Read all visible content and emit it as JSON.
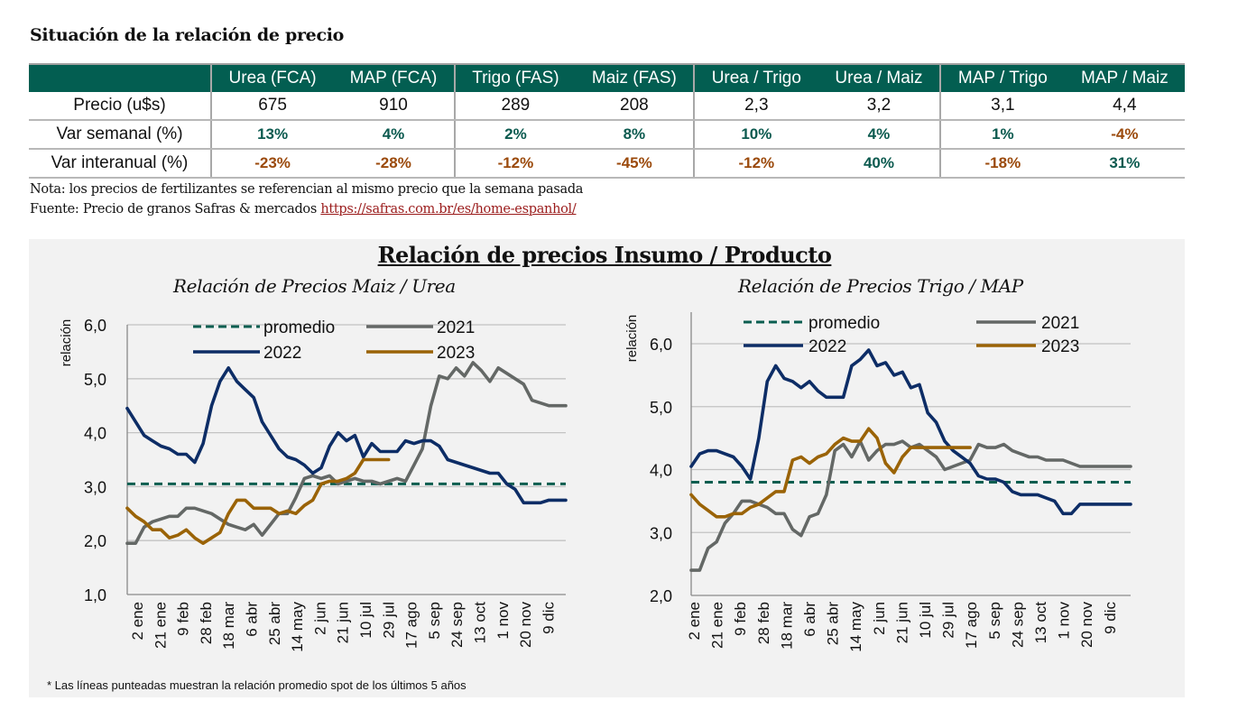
{
  "header": {
    "title": "Situación de la relación de precio"
  },
  "table": {
    "columns": [
      "Urea (FCA)",
      "MAP (FCA)",
      "Trigo (FAS)",
      "Maiz (FAS)",
      "Urea / Trigo",
      "Urea / Maiz",
      "MAP / Trigo",
      "MAP / Maiz"
    ],
    "rows": [
      {
        "label": "Precio (u$s)",
        "values": [
          "675",
          "910",
          "289",
          "208",
          "2,3",
          "3,2",
          "3,1",
          "4,4"
        ],
        "signs": [
          "",
          "",
          "",
          "",
          "",
          "",
          "",
          ""
        ]
      },
      {
        "label": "Var semanal (%)",
        "values": [
          "13%",
          "4%",
          "2%",
          "8%",
          "10%",
          "4%",
          "1%",
          "-4%"
        ],
        "signs": [
          "pos",
          "pos",
          "pos",
          "pos",
          "pos",
          "pos",
          "pos",
          "neg"
        ]
      },
      {
        "label": "Var interanual (%)",
        "values": [
          "-23%",
          "-28%",
          "-12%",
          "-45%",
          "-12%",
          "40%",
          "-18%",
          "31%"
        ],
        "signs": [
          "neg",
          "neg",
          "neg",
          "neg",
          "neg",
          "pos",
          "neg",
          "pos"
        ]
      }
    ]
  },
  "notes": {
    "nota": "Nota: los precios de fertilizantes se referencian al mismo precio que la semana pasada",
    "fuente_prefix": "Fuente: Precio de granos Safras & mercados ",
    "fuente_link": "https://safras.com.br/es/home-espanhol/"
  },
  "panel": {
    "title": "Relación de precios Insumo / Producto",
    "footnote": "* Las líneas punteadas muestran la relación promedio spot de los últimos 5 años"
  },
  "colors": {
    "header_green": "#035e51",
    "positive": "#0c5a4f",
    "negative": "#9b4a0c",
    "link": "#9b1c1c",
    "promedio": "#0a5e50",
    "y2021": "#646866",
    "y2022": "#0d2d66",
    "y2023": "#9a6306"
  },
  "chart_data": [
    {
      "type": "line",
      "title": "Relación de Precios Maiz / Urea",
      "ylabel": "relación",
      "xlabel": "",
      "ylim": [
        1.0,
        6.0
      ],
      "yticks": [
        "1,0",
        "2,0",
        "3,0",
        "4,0",
        "5,0",
        "6,0"
      ],
      "ytick_values": [
        1,
        2,
        3,
        4,
        5,
        6
      ],
      "x_tick_labels": [
        "2 ene",
        "21 ene",
        "9 feb",
        "28 feb",
        "18 mar",
        "6 abr",
        "25 abr",
        "14 may",
        "2 jun",
        "21 jun",
        "10 jul",
        "29 jul",
        "17 ago",
        "5 sep",
        "24 sep",
        "13 oct",
        "1 nov",
        "20 nov",
        "9 dic"
      ],
      "x_domain_weeks": [
        0,
        52
      ],
      "grid": true,
      "legend": [
        "promedio",
        "2021",
        "2022",
        "2023"
      ],
      "legend_position": "top",
      "series": [
        {
          "name": "promedio",
          "style": "dashed",
          "x": [
            0,
            52
          ],
          "y": [
            3.05,
            3.05
          ]
        },
        {
          "name": "2021",
          "x": [
            0,
            1,
            2,
            3,
            4,
            5,
            6,
            7,
            8,
            9,
            10,
            11,
            12,
            13,
            14,
            15,
            16,
            17,
            18,
            19,
            20,
            21,
            22,
            23,
            24,
            25,
            26,
            27,
            28,
            29,
            30,
            31,
            32,
            33,
            34,
            35,
            36,
            37,
            38,
            39,
            40,
            41,
            42,
            43,
            44,
            45,
            46,
            47,
            48,
            49,
            50,
            51,
            52
          ],
          "y": [
            1.95,
            1.95,
            2.25,
            2.35,
            2.4,
            2.45,
            2.45,
            2.6,
            2.6,
            2.55,
            2.5,
            2.4,
            2.3,
            2.25,
            2.2,
            2.3,
            2.1,
            2.3,
            2.5,
            2.5,
            2.8,
            3.15,
            3.2,
            3.15,
            3.2,
            3.05,
            3.1,
            3.15,
            3.1,
            3.1,
            3.05,
            3.1,
            3.15,
            3.1,
            3.4,
            3.7,
            4.5,
            5.05,
            5.0,
            5.2,
            5.05,
            5.3,
            5.15,
            4.95,
            5.2,
            5.1,
            5.0,
            4.9,
            4.6,
            4.55,
            4.5,
            4.5,
            4.5
          ]
        },
        {
          "name": "2022",
          "x": [
            0,
            1,
            2,
            3,
            4,
            5,
            6,
            7,
            8,
            9,
            10,
            11,
            12,
            13,
            14,
            15,
            16,
            17,
            18,
            19,
            20,
            21,
            22,
            23,
            24,
            25,
            26,
            27,
            28,
            29,
            30,
            31,
            32,
            33,
            34,
            35,
            36,
            37,
            38,
            39,
            40,
            41,
            42,
            43,
            44,
            45,
            46,
            47,
            48,
            49,
            50,
            51,
            52
          ],
          "y": [
            4.45,
            4.2,
            3.95,
            3.85,
            3.75,
            3.7,
            3.6,
            3.6,
            3.45,
            3.8,
            4.5,
            4.95,
            5.2,
            4.95,
            4.8,
            4.65,
            4.2,
            3.95,
            3.7,
            3.55,
            3.5,
            3.4,
            3.25,
            3.35,
            3.75,
            4.0,
            3.85,
            3.95,
            3.55,
            3.8,
            3.65,
            3.65,
            3.65,
            3.85,
            3.8,
            3.85,
            3.85,
            3.75,
            3.5,
            3.45,
            3.4,
            3.35,
            3.3,
            3.25,
            3.25,
            3.05,
            2.95,
            2.7,
            2.7,
            2.7,
            2.75,
            2.75,
            2.75
          ]
        },
        {
          "name": "2023",
          "x": [
            0,
            1,
            2,
            3,
            4,
            5,
            6,
            7,
            8,
            9,
            10,
            11,
            12,
            13,
            14,
            15,
            16,
            17,
            18,
            19,
            20,
            21,
            22,
            23,
            24,
            25,
            26,
            27,
            28,
            29,
            30,
            31
          ],
          "y": [
            2.6,
            2.45,
            2.35,
            2.2,
            2.2,
            2.05,
            2.1,
            2.2,
            2.05,
            1.95,
            2.05,
            2.15,
            2.5,
            2.75,
            2.75,
            2.6,
            2.6,
            2.6,
            2.5,
            2.55,
            2.5,
            2.65,
            2.75,
            3.05,
            3.1,
            3.1,
            3.15,
            3.25,
            3.5,
            3.5,
            3.5,
            3.5
          ]
        }
      ]
    },
    {
      "type": "line",
      "title": "Relación de Precios Trigo / MAP",
      "ylabel": "relación",
      "xlabel": "",
      "ylim": [
        2.0,
        6.0
      ],
      "yticks": [
        "2,0",
        "3,0",
        "4,0",
        "5,0",
        "6,0"
      ],
      "ytick_values": [
        2,
        3,
        4,
        5,
        6
      ],
      "x_tick_labels": [
        "2 ene",
        "21 ene",
        "9 feb",
        "28 feb",
        "18 mar",
        "6 abr",
        "25 abr",
        "14 may",
        "2 jun",
        "21 jun",
        "10 jul",
        "29 jul",
        "17 ago",
        "5 sep",
        "24 sep",
        "13 oct",
        "1 nov",
        "20 nov",
        "9 dic"
      ],
      "x_domain_weeks": [
        0,
        52
      ],
      "grid": true,
      "legend": [
        "promedio",
        "2021",
        "2022",
        "2023"
      ],
      "legend_position": "top",
      "series": [
        {
          "name": "promedio",
          "style": "dashed",
          "x": [
            0,
            52
          ],
          "y": [
            3.8,
            3.8
          ]
        },
        {
          "name": "2021",
          "x": [
            0,
            1,
            2,
            3,
            4,
            5,
            6,
            7,
            8,
            9,
            10,
            11,
            12,
            13,
            14,
            15,
            16,
            17,
            18,
            19,
            20,
            21,
            22,
            23,
            24,
            25,
            26,
            27,
            28,
            29,
            30,
            31,
            32,
            33,
            34,
            35,
            36,
            37,
            38,
            39,
            40,
            41,
            42,
            43,
            44,
            45,
            46,
            47,
            48,
            49,
            50,
            51,
            52
          ],
          "y": [
            2.4,
            2.4,
            2.75,
            2.85,
            3.15,
            3.3,
            3.5,
            3.5,
            3.45,
            3.4,
            3.3,
            3.3,
            3.05,
            2.95,
            3.25,
            3.3,
            3.6,
            4.3,
            4.4,
            4.2,
            4.45,
            4.15,
            4.3,
            4.4,
            4.4,
            4.45,
            4.35,
            4.4,
            4.3,
            4.2,
            4.0,
            4.05,
            4.1,
            4.15,
            4.4,
            4.35,
            4.35,
            4.4,
            4.3,
            4.25,
            4.2,
            4.2,
            4.15,
            4.15,
            4.15,
            4.1,
            4.05,
            4.05,
            4.05,
            4.05,
            4.05,
            4.05,
            4.05
          ]
        },
        {
          "name": "2022",
          "x": [
            0,
            1,
            2,
            3,
            4,
            5,
            6,
            7,
            8,
            9,
            10,
            11,
            12,
            13,
            14,
            15,
            16,
            17,
            18,
            19,
            20,
            21,
            22,
            23,
            24,
            25,
            26,
            27,
            28,
            29,
            30,
            31,
            32,
            33,
            34,
            35,
            36,
            37,
            38,
            39,
            40,
            41,
            42,
            43,
            44,
            45,
            46,
            47,
            48,
            49,
            50,
            51,
            52
          ],
          "y": [
            4.05,
            4.25,
            4.3,
            4.3,
            4.25,
            4.2,
            4.05,
            3.85,
            4.5,
            5.4,
            5.65,
            5.45,
            5.4,
            5.3,
            5.4,
            5.25,
            5.15,
            5.15,
            5.15,
            5.65,
            5.75,
            5.9,
            5.65,
            5.7,
            5.5,
            5.55,
            5.3,
            5.35,
            4.9,
            4.75,
            4.45,
            4.3,
            4.2,
            4.1,
            3.9,
            3.85,
            3.85,
            3.8,
            3.65,
            3.6,
            3.6,
            3.6,
            3.55,
            3.5,
            3.3,
            3.3,
            3.45,
            3.45,
            3.45,
            3.45,
            3.45,
            3.45,
            3.45
          ]
        },
        {
          "name": "2023",
          "x": [
            0,
            1,
            2,
            3,
            4,
            5,
            6,
            7,
            8,
            9,
            10,
            11,
            12,
            13,
            14,
            15,
            16,
            17,
            18,
            19,
            20,
            21,
            22,
            23,
            24,
            25,
            26,
            27,
            28,
            29,
            30,
            31,
            32,
            33
          ],
          "y": [
            3.6,
            3.45,
            3.35,
            3.25,
            3.25,
            3.3,
            3.3,
            3.4,
            3.45,
            3.55,
            3.65,
            3.65,
            4.15,
            4.2,
            4.1,
            4.2,
            4.25,
            4.4,
            4.5,
            4.45,
            4.45,
            4.65,
            4.5,
            4.1,
            3.95,
            4.2,
            4.35,
            4.35,
            4.35,
            4.35,
            4.35,
            4.35,
            4.35,
            4.35
          ]
        }
      ]
    }
  ]
}
